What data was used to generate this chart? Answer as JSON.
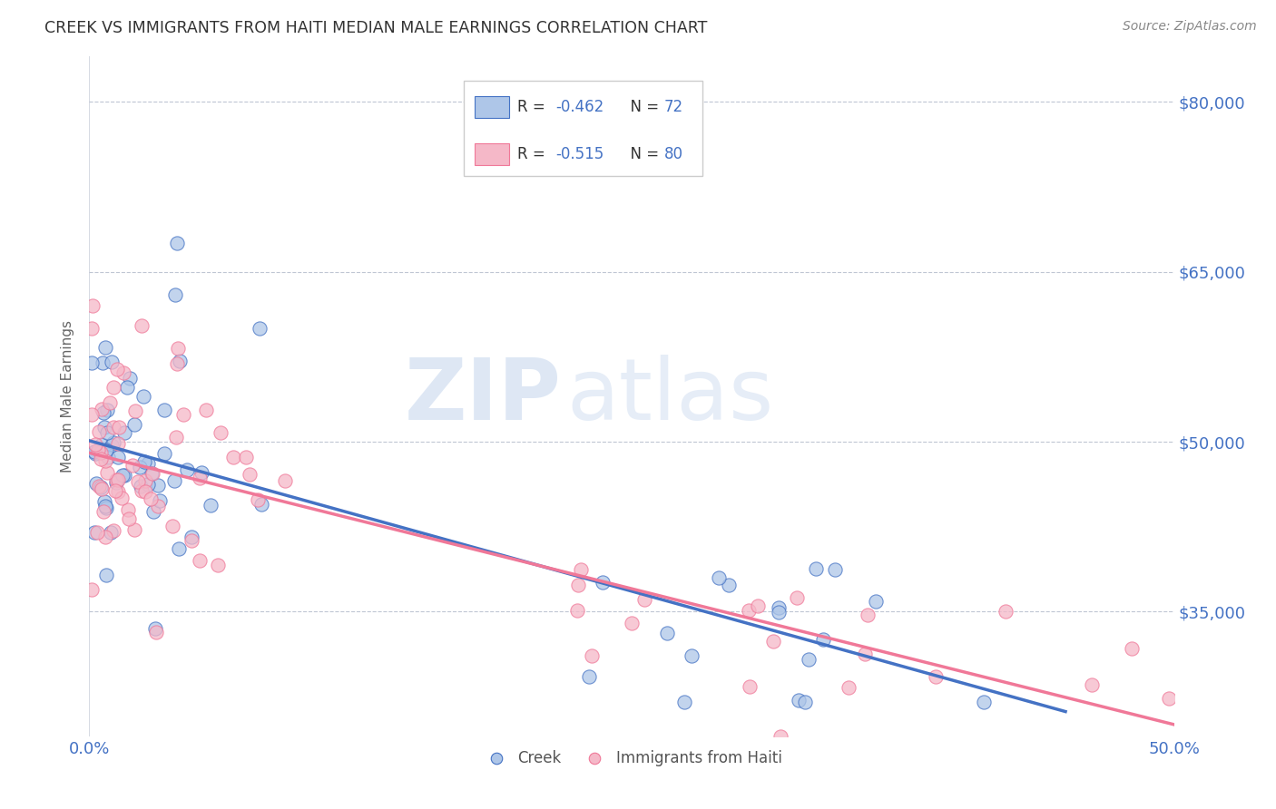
{
  "title": "CREEK VS IMMIGRANTS FROM HAITI MEDIAN MALE EARNINGS CORRELATION CHART",
  "source": "Source: ZipAtlas.com",
  "ylabel": "Median Male Earnings",
  "xlim": [
    0.0,
    0.5
  ],
  "ylim": [
    24000,
    84000
  ],
  "color_creek": "#aec6e8",
  "color_haiti": "#f5b8c8",
  "color_creek_line": "#4472c4",
  "color_haiti_line": "#f07898",
  "color_text_blue": "#4472c4",
  "color_text_dark": "#333333",
  "legend_r_creek": "-0.462",
  "legend_n_creek": "72",
  "legend_r_haiti": "-0.515",
  "legend_n_haiti": "80",
  "legend_label_creek": "Creek",
  "legend_label_haiti": "Immigrants from Haiti",
  "watermark_zip": "ZIP",
  "watermark_atlas": "atlas",
  "creek_intercept": 49500,
  "creek_slope": -46000,
  "haiti_intercept": 48500,
  "haiti_slope": -50000,
  "yticks": [
    35000,
    50000,
    65000,
    80000
  ],
  "ytick_labels": [
    "$35,000",
    "$50,000",
    "$65,000",
    "$80,000"
  ]
}
